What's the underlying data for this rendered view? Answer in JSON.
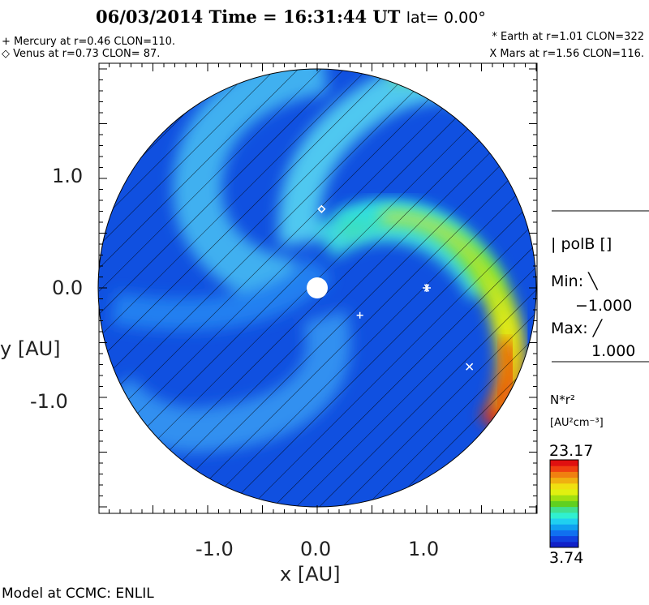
{
  "header": {
    "title": "06/03/2014 Time = 16:31:44 UT",
    "lat": "lat= 0.00°"
  },
  "legend": {
    "mercury": "+ Mercury at r=0.46 CLON=110.",
    "venus": "◇ Venus at r=0.73 CLON= 87.",
    "earth": "* Earth at  r=1.01 CLON=322",
    "mars": "X Mars at r=1.56 CLON=116."
  },
  "polarity": {
    "label": "| polB []",
    "min_label": "Min: ╲",
    "min_value": "−1.000",
    "max_label": "Max: ╱",
    "max_value": "1.000"
  },
  "colorbar": {
    "quantity": "N*r²",
    "units": "[AU²cm⁻³]",
    "max": "23.17",
    "min": "3.74",
    "colors": [
      "#1020c8",
      "#1040e0",
      "#1070f0",
      "#10a0f0",
      "#20d0f0",
      "#30f0d0",
      "#40e090",
      "#60d020",
      "#a0e010",
      "#e0f010",
      "#f0e010",
      "#f0b010",
      "#f08010",
      "#f04010",
      "#e01010"
    ]
  },
  "footer": "Model at CCMC: ENLIL",
  "chart_data": {
    "type": "heatmap",
    "title": "06/03/2014 Time = 16:31:44 UT lat= 0.00°",
    "xlabel": "x [AU]",
    "ylabel": "y [AU]",
    "xlim": [
      -2.0,
      2.0
    ],
    "ylim": [
      -2.0,
      2.0
    ],
    "xticks": [
      "-1.0",
      "0.0",
      "1.0"
    ],
    "yticks": [
      "1.0",
      "0.0",
      "-1.0"
    ],
    "xtick_values": [
      -1.0,
      0.0,
      1.0
    ],
    "ytick_values": [
      1.0,
      0.0,
      -1.0
    ],
    "value_range": [
      3.74,
      23.17
    ],
    "planets": [
      {
        "name": "Mercury",
        "symbol": "+",
        "x": 0.39,
        "y": -0.25
      },
      {
        "name": "Venus",
        "symbol": "◇",
        "x": 0.04,
        "y": 0.72
      },
      {
        "name": "Earth",
        "symbol": "*",
        "x": 1.0,
        "y": 0.0
      },
      {
        "name": "Mars",
        "symbol": "x",
        "x": 1.39,
        "y": -0.72
      }
    ]
  }
}
